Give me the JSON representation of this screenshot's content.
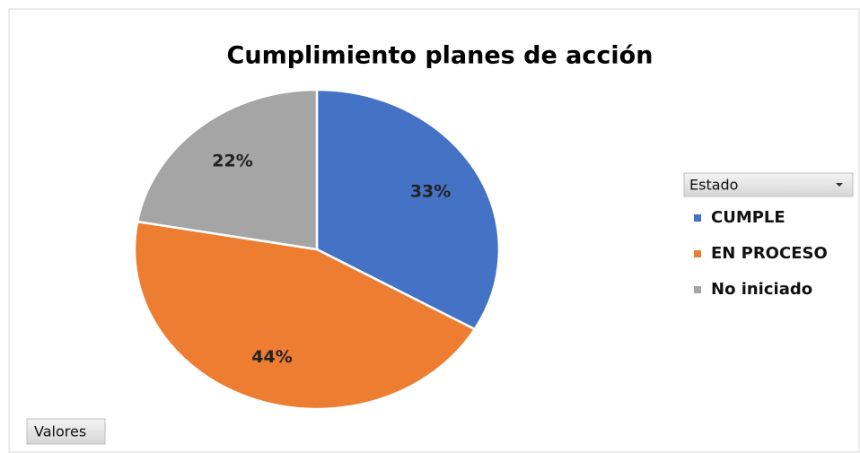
{
  "chart_data": {
    "type": "pie",
    "title": "Cumplimiento planes de acción",
    "categories": [
      "CUMPLE",
      "EN PROCESO",
      "No iniciado"
    ],
    "values": [
      33,
      44,
      22
    ],
    "value_labels": [
      "33%",
      "44%",
      "22%"
    ],
    "colors": [
      "#4472c4",
      "#ed7d31",
      "#a5a5a5"
    ],
    "legend_title": "Estado",
    "legend": "right",
    "field_button": "Valores"
  }
}
